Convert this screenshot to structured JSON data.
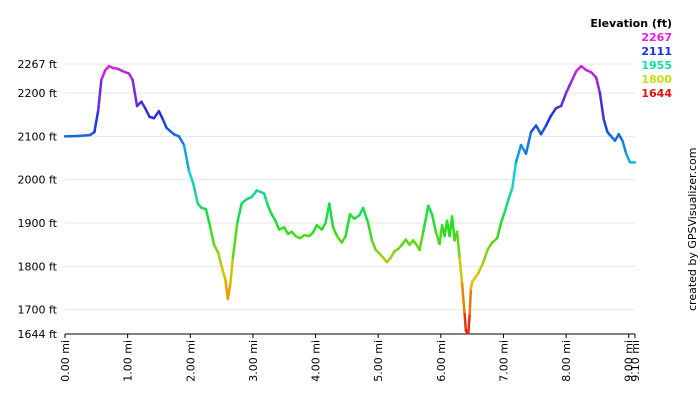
{
  "credit": "created by GPSVisualizer.com",
  "legend": {
    "title": "Elevation (ft)",
    "items": [
      {
        "label": "2267",
        "color": "#e020e0"
      },
      {
        "label": "2111",
        "color": "#1a30e0"
      },
      {
        "label": "1955",
        "color": "#10e0a0"
      },
      {
        "label": "1800",
        "color": "#c0e010"
      },
      {
        "label": "1644",
        "color": "#e01010"
      }
    ]
  },
  "chart_data": {
    "type": "line",
    "title": "",
    "xlabel": "",
    "ylabel": "",
    "xlim": [
      0,
      9.1
    ],
    "ylim": [
      1644,
      2267
    ],
    "color_scale": {
      "min": 1644,
      "max": 2267,
      "colors": [
        "#e01010",
        "#f0c000",
        "#20e020",
        "#10d0e0",
        "#1a30e0",
        "#e020e0"
      ]
    },
    "y_ticks": [
      {
        "value": 1644,
        "label": "1644 ft"
      },
      {
        "value": 1700,
        "label": "1700 ft"
      },
      {
        "value": 1800,
        "label": "1800 ft"
      },
      {
        "value": 1900,
        "label": "1900 ft"
      },
      {
        "value": 2000,
        "label": "2000 ft"
      },
      {
        "value": 2100,
        "label": "2100 ft"
      },
      {
        "value": 2200,
        "label": "2200 ft"
      },
      {
        "value": 2267,
        "label": "2267 ft"
      }
    ],
    "x_ticks": [
      {
        "value": 0,
        "label": "0.00 mi"
      },
      {
        "value": 1,
        "label": "1.00 mi"
      },
      {
        "value": 2,
        "label": "2.00 mi"
      },
      {
        "value": 3,
        "label": "3.00 mi"
      },
      {
        "value": 4,
        "label": "4.00 mi"
      },
      {
        "value": 5,
        "label": "5.00 mi"
      },
      {
        "value": 6,
        "label": "6.00 mi"
      },
      {
        "value": 7,
        "label": "7.00 mi"
      },
      {
        "value": 8,
        "label": "8.00 mi"
      },
      {
        "value": 9,
        "label": "9.00 mi"
      },
      {
        "value": 9.1,
        "label": "9.10 mi"
      }
    ],
    "series": [
      {
        "x": [
          0.0,
          0.2,
          0.4,
          0.47,
          0.53,
          0.58,
          0.64,
          0.7,
          0.76,
          0.84,
          0.9,
          0.96,
          1.02,
          1.08,
          1.15,
          1.22,
          1.28,
          1.35,
          1.42,
          1.5,
          1.56,
          1.62,
          1.68,
          1.75,
          1.82,
          1.9,
          1.98,
          2.05,
          2.12,
          2.18,
          2.25,
          2.32,
          2.38,
          2.45,
          2.5,
          2.56,
          2.6,
          2.64,
          2.68,
          2.75,
          2.82,
          2.9,
          2.98,
          3.06,
          3.12,
          3.18,
          3.24,
          3.3,
          3.36,
          3.42,
          3.5,
          3.56,
          3.62,
          3.68,
          3.75,
          3.82,
          3.9,
          3.96,
          4.02,
          4.1,
          4.16,
          4.22,
          4.28,
          4.35,
          4.42,
          4.48,
          4.55,
          4.62,
          4.7,
          4.76,
          4.84,
          4.9,
          4.96,
          5.02,
          5.08,
          5.14,
          5.2,
          5.26,
          5.32,
          5.38,
          5.44,
          5.5,
          5.56,
          5.62,
          5.66,
          5.72,
          5.8,
          5.86,
          5.92,
          5.98,
          6.02,
          6.06,
          6.1,
          6.14,
          6.18,
          6.22,
          6.26,
          6.3,
          6.34,
          6.38,
          6.4,
          6.42,
          6.44,
          6.46,
          6.48,
          6.5,
          6.54,
          6.6,
          6.68,
          6.75,
          6.82,
          6.9,
          6.96,
          7.02,
          7.08,
          7.14,
          7.2,
          7.28,
          7.36,
          7.44,
          7.52,
          7.6,
          7.68,
          7.76,
          7.84,
          7.92,
          8.0,
          8.08,
          8.16,
          8.24,
          8.32,
          8.4,
          8.48,
          8.54,
          8.6,
          8.66,
          8.72,
          8.78,
          8.84,
          8.9,
          8.96,
          9.02,
          9.1
        ],
        "values": [
          2100,
          2101,
          2103,
          2110,
          2160,
          2230,
          2252,
          2262,
          2258,
          2256,
          2252,
          2248,
          2245,
          2230,
          2170,
          2180,
          2165,
          2145,
          2142,
          2158,
          2140,
          2120,
          2112,
          2104,
          2100,
          2080,
          2020,
          1990,
          1945,
          1935,
          1932,
          1890,
          1850,
          1830,
          1800,
          1770,
          1725,
          1760,
          1820,
          1900,
          1945,
          1955,
          1960,
          1975,
          1972,
          1968,
          1940,
          1920,
          1905,
          1885,
          1890,
          1875,
          1880,
          1870,
          1865,
          1872,
          1870,
          1878,
          1895,
          1885,
          1900,
          1945,
          1890,
          1868,
          1855,
          1870,
          1920,
          1910,
          1918,
          1935,
          1900,
          1860,
          1838,
          1830,
          1820,
          1810,
          1820,
          1835,
          1840,
          1850,
          1862,
          1850,
          1860,
          1848,
          1838,
          1880,
          1940,
          1920,
          1880,
          1852,
          1895,
          1870,
          1905,
          1870,
          1915,
          1860,
          1880,
          1820,
          1760,
          1690,
          1652,
          1648,
          1646,
          1690,
          1748,
          1765,
          1772,
          1785,
          1810,
          1840,
          1855,
          1865,
          1900,
          1925,
          1955,
          1980,
          2040,
          2080,
          2060,
          2110,
          2125,
          2105,
          2125,
          2148,
          2165,
          2170,
          2200,
          2225,
          2250,
          2262,
          2253,
          2248,
          2236,
          2200,
          2140,
          2110,
          2100,
          2090,
          2105,
          2090,
          2060,
          2040,
          2040
        ]
      }
    ]
  }
}
